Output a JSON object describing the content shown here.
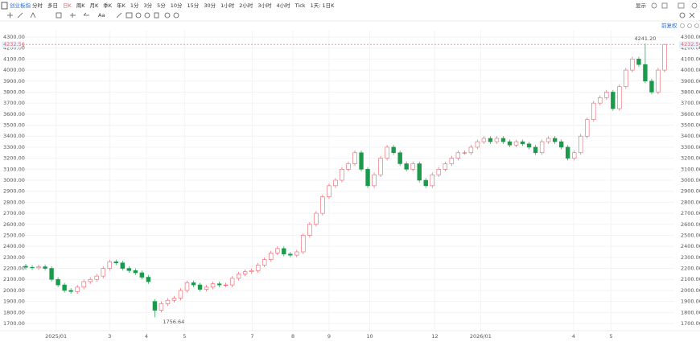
{
  "toolbar": {
    "symbol": "创业板指",
    "periods": [
      "分时",
      "多日",
      "日K",
      "周K",
      "月K",
      "季K",
      "年K",
      "1分",
      "3分",
      "5分",
      "10分",
      "15分",
      "30分",
      "1小时",
      "2小时",
      "3小时",
      "4小时",
      "Tick",
      "1天: 1日K"
    ],
    "active": 2,
    "display": "显示",
    "adjust": "前复权"
  },
  "chart_data": {
    "type": "candlestick",
    "up_color": "#e8636b",
    "down_color": "#1a9b4b",
    "grid": true,
    "open": [
      2220,
      2210,
      2205,
      2215,
      2200,
      2100,
      2050,
      2000,
      1990,
      2030,
      2080,
      2100,
      2130,
      2200,
      2260,
      2250,
      2200,
      2180,
      2160,
      2120,
      1900,
      1820,
      1880,
      1910,
      1930,
      2000,
      2070,
      2050,
      2010,
      2030,
      2060,
      2050,
      2050,
      2110,
      2150,
      2170,
      2180,
      2230,
      2280,
      2340,
      2380,
      2330,
      2320,
      2350,
      2500,
      2600,
      2700,
      2850,
      2950,
      3000,
      3100,
      3150,
      3250,
      3100,
      2950,
      3050,
      3200,
      3300,
      3250,
      3150,
      3100,
      3150,
      3000,
      2950,
      3050,
      3100,
      3150,
      3200,
      3250,
      3250,
      3300,
      3350,
      3380,
      3350,
      3380,
      3350,
      3320,
      3350,
      3330,
      3300,
      3250,
      3350,
      3380,
      3350,
      3300,
      3200,
      3250,
      3400,
      3550,
      3700,
      3750,
      3800,
      3650,
      3850,
      4000,
      4100,
      4050,
      3900,
      3800,
      4000
    ],
    "high": [
      2240,
      2230,
      2235,
      2235,
      2220,
      2120,
      2070,
      2020,
      2050,
      2100,
      2120,
      2150,
      2220,
      2280,
      2280,
      2270,
      2220,
      2200,
      2180,
      2140,
      1920,
      1900,
      1930,
      1950,
      2020,
      2090,
      2090,
      2070,
      2050,
      2080,
      2080,
      2070,
      2130,
      2170,
      2190,
      2200,
      2250,
      2300,
      2360,
      2400,
      2400,
      2350,
      2370,
      2520,
      2620,
      2720,
      2870,
      2970,
      3020,
      3120,
      3170,
      3270,
      3270,
      3120,
      3070,
      3220,
      3320,
      3320,
      3270,
      3170,
      3170,
      3170,
      3020,
      3070,
      3120,
      3170,
      3220,
      3270,
      3270,
      3320,
      3370,
      3400,
      3400,
      3400,
      3400,
      3370,
      3370,
      3370,
      3350,
      3320,
      3370,
      3400,
      3400,
      3370,
      3320,
      3270,
      3420,
      3570,
      3720,
      3770,
      3820,
      3820,
      3870,
      4020,
      4120,
      4120,
      4241.2,
      3920,
      4020,
      4238
    ],
    "low": [
      2190,
      2185,
      2185,
      2180,
      2080,
      2030,
      1980,
      1970,
      1970,
      2010,
      2060,
      2080,
      2110,
      2180,
      2230,
      2180,
      2160,
      2140,
      2100,
      2060,
      1756.64,
      1800,
      1860,
      1890,
      1910,
      1980,
      2030,
      1990,
      1990,
      2010,
      2030,
      2030,
      2030,
      2090,
      2130,
      2150,
      2160,
      2210,
      2260,
      2320,
      2310,
      2300,
      2300,
      2330,
      2480,
      2580,
      2680,
      2830,
      2930,
      2980,
      3080,
      3130,
      3080,
      2930,
      2930,
      3030,
      3180,
      3230,
      3130,
      3080,
      3080,
      2980,
      2930,
      2930,
      3030,
      3080,
      3130,
      3180,
      3230,
      3230,
      3280,
      3330,
      3330,
      3330,
      3330,
      3300,
      3300,
      3310,
      3280,
      3230,
      3230,
      3330,
      3330,
      3280,
      3180,
      3180,
      3230,
      3380,
      3530,
      3680,
      3730,
      3630,
      3630,
      3830,
      3980,
      4030,
      3880,
      3780,
      3780,
      3980
    ],
    "close": [
      2210,
      2205,
      2215,
      2200,
      2100,
      2050,
      2000,
      1990,
      2030,
      2080,
      2100,
      2130,
      2200,
      2260,
      2250,
      2200,
      2180,
      2160,
      2120,
      2080,
      1820,
      1880,
      1910,
      1930,
      2000,
      2070,
      2050,
      2010,
      2030,
      2060,
      2050,
      2050,
      2110,
      2150,
      2170,
      2180,
      2230,
      2280,
      2340,
      2380,
      2330,
      2320,
      2350,
      2500,
      2600,
      2700,
      2850,
      2950,
      3000,
      3100,
      3150,
      3250,
      3100,
      2950,
      3050,
      3200,
      3300,
      3250,
      3150,
      3100,
      3150,
      3000,
      2950,
      3050,
      3100,
      3150,
      3200,
      3250,
      3250,
      3300,
      3350,
      3380,
      3350,
      3380,
      3350,
      3320,
      3350,
      3330,
      3300,
      3250,
      3350,
      3380,
      3350,
      3300,
      3200,
      3250,
      3400,
      3550,
      3700,
      3750,
      3800,
      3650,
      3850,
      4000,
      4100,
      4050,
      3900,
      3800,
      4000,
      4232.56
    ],
    "max_label": "4241.20",
    "min_label": "1756.64",
    "xlim": [
      -0.5,
      100
    ],
    "xticks": [
      {
        "value": 4.7,
        "label": "2025/01"
      },
      {
        "value": 13,
        "label": "3"
      },
      {
        "value": 18.7,
        "label": "4"
      },
      {
        "value": 24.6,
        "label": "5"
      },
      {
        "value": 35.1,
        "label": "7"
      },
      {
        "value": 41.4,
        "label": "8"
      },
      {
        "value": 47,
        "label": "9"
      },
      {
        "value": 53.3,
        "label": "10"
      },
      {
        "value": 63.4,
        "label": "12"
      },
      {
        "value": 70.5,
        "label": "2026/01"
      },
      {
        "value": 84.9,
        "label": "4"
      },
      {
        "value": 90.7,
        "label": "5"
      }
    ],
    "ylim": [
      1700,
      4300
    ],
    "yticks": [
      {
        "value": 1700,
        "label": "1700.00"
      },
      {
        "value": 1800,
        "label": "1800.00"
      },
      {
        "value": 1900,
        "label": "1900.00"
      },
      {
        "value": 2000,
        "label": "2000.00"
      },
      {
        "value": 2100,
        "label": "2100.00"
      },
      {
        "value": 2200,
        "label": "2200.00"
      },
      {
        "value": 2300,
        "label": "2300.00"
      },
      {
        "value": 2400,
        "label": "2400.00"
      },
      {
        "value": 2500,
        "label": "2500.00"
      },
      {
        "value": 2600,
        "label": "2600.00"
      },
      {
        "value": 2700,
        "label": "2700.00"
      },
      {
        "value": 2800,
        "label": "2800.00"
      },
      {
        "value": 2900,
        "label": "2900.00"
      },
      {
        "value": 3000,
        "label": "3000.00"
      },
      {
        "value": 3100,
        "label": "3100.00"
      },
      {
        "value": 3200,
        "label": "3200.00"
      },
      {
        "value": 3300,
        "label": "3300.00"
      },
      {
        "value": 3400,
        "label": "3400.00"
      },
      {
        "value": 3500,
        "label": "3500.00"
      },
      {
        "value": 3600,
        "label": "3600.00"
      },
      {
        "value": 3700,
        "label": "3700.00"
      },
      {
        "value": 3800,
        "label": "3800.00"
      },
      {
        "value": 3900,
        "label": "3900.00"
      },
      {
        "value": 4000,
        "label": "4000.00"
      },
      {
        "value": 4100,
        "label": "4100.00"
      },
      {
        "value": 4200,
        "label": "4200.00"
      },
      {
        "value": 4300,
        "label": "4300.00"
      }
    ]
  }
}
